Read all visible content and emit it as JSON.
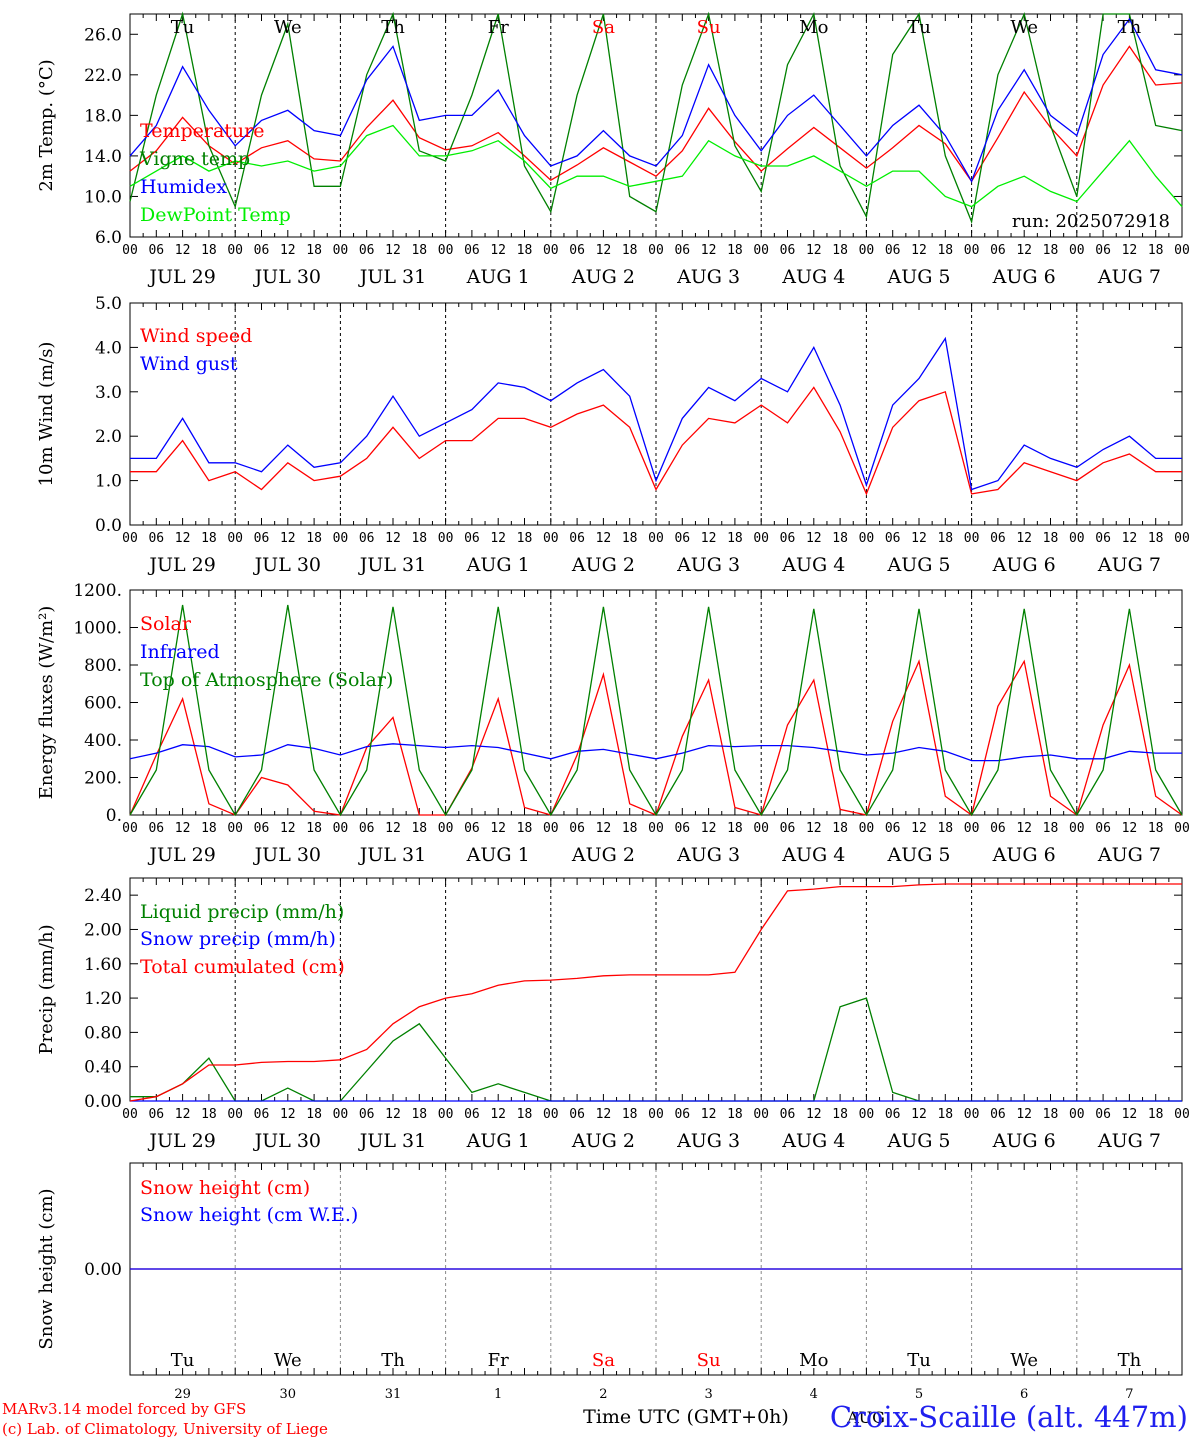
{
  "run_label": "run: 2025072918",
  "xaxis": {
    "hour_labels": [
      "00",
      "06",
      "12",
      "18"
    ],
    "end_hour_label": "00",
    "dates": [
      "JUL 29",
      "JUL 30",
      "JUL 31",
      "AUG  1",
      "AUG  2",
      "AUG  3",
      "AUG  4",
      "AUG  5",
      "AUG  6",
      "AUG  7"
    ],
    "weekdays": [
      "Tu",
      "We",
      "Th",
      "Fr",
      "Sa",
      "Su",
      "Mo",
      "Tu",
      "We",
      "Th"
    ],
    "weekend_color": "#ff0000",
    "weekend_index": [
      4,
      5
    ],
    "day_numbers": [
      "29",
      "30",
      "31",
      "1",
      "2",
      "3",
      "4",
      "5",
      "6",
      "7"
    ],
    "bottom_month": "AUG",
    "bottom_title": "Time UTC (GMT+0h)"
  },
  "footer": {
    "credit_line1": "MARv3.14 model forced by GFS",
    "credit_line2": "(c) Lab. of Climatology, University of Liege",
    "location": "Croix-Scaille (alt. 447m)"
  },
  "chart_data": [
    {
      "id": "temp",
      "type": "line",
      "ylabel": "2m Temp. (°C)",
      "ylim": [
        6.0,
        28.0
      ],
      "yticks": [
        6.0,
        10.0,
        14.0,
        18.0,
        22.0,
        26.0
      ],
      "tick_decimals": 1,
      "x_hours_start": 0,
      "step_hours": 6,
      "series": [
        {
          "name": "Temperature",
          "color": "#ff0000",
          "values": [
            12.5,
            14.5,
            17.8,
            15.0,
            13.2,
            14.8,
            15.5,
            13.7,
            13.5,
            16.8,
            19.5,
            15.8,
            14.6,
            15.0,
            16.3,
            14.0,
            11.6,
            13.1,
            14.8,
            13.4,
            12.0,
            14.5,
            18.7,
            15.4,
            12.5,
            14.7,
            16.8,
            14.8,
            12.8,
            14.8,
            17.0,
            15.2,
            11.5,
            15.8,
            20.3,
            16.8,
            14.0,
            21.0,
            24.8,
            21.0,
            21.2
          ]
        },
        {
          "name": "Vigne temp",
          "color": "#008000",
          "values": [
            9.5,
            20.0,
            28.0,
            15.0,
            9.0,
            20.0,
            27.0,
            11.0,
            11.0,
            22.0,
            28.0,
            14.5,
            13.5,
            20.0,
            28.0,
            13.0,
            8.5,
            20.0,
            28.0,
            10.0,
            8.5,
            21.0,
            28.0,
            15.0,
            10.5,
            23.0,
            28.0,
            13.0,
            8.0,
            24.0,
            28.0,
            14.0,
            7.5,
            22.0,
            28.0,
            17.0,
            10.0,
            28.0,
            28.0,
            17.0,
            16.5
          ]
        },
        {
          "name": "Humidex",
          "color": "#0000ff",
          "values": [
            14.0,
            17.0,
            22.8,
            18.5,
            15.0,
            17.5,
            18.5,
            16.5,
            16.0,
            21.5,
            24.8,
            17.5,
            18.0,
            18.0,
            20.5,
            16.0,
            13.0,
            14.0,
            16.5,
            14.0,
            13.0,
            16.0,
            23.0,
            18.0,
            14.5,
            18.0,
            20.0,
            17.0,
            14.0,
            17.0,
            19.0,
            16.0,
            11.5,
            18.5,
            22.5,
            18.0,
            16.0,
            24.0,
            27.5,
            22.5,
            22.0
          ]
        },
        {
          "name": "DewPoint Temp",
          "color": "#00ee00",
          "values": [
            11.0,
            12.5,
            14.0,
            12.5,
            13.5,
            13.0,
            13.5,
            12.5,
            13.0,
            16.0,
            17.0,
            14.0,
            14.0,
            14.5,
            15.5,
            13.5,
            10.8,
            12.0,
            12.0,
            11.0,
            11.5,
            12.0,
            15.5,
            14.0,
            13.0,
            13.0,
            14.0,
            12.5,
            11.0,
            12.5,
            12.5,
            10.0,
            9.0,
            11.0,
            12.0,
            10.5,
            9.5,
            12.5,
            15.5,
            12.0,
            9.0
          ]
        }
      ]
    },
    {
      "id": "wind",
      "type": "line",
      "ylabel": "10m Wind (m/s)",
      "ylim": [
        0.0,
        5.0
      ],
      "yticks": [
        0.0,
        1.0,
        2.0,
        3.0,
        4.0,
        5.0
      ],
      "tick_decimals": 1,
      "x_hours_start": 0,
      "step_hours": 6,
      "series": [
        {
          "name": "Wind speed",
          "color": "#ff0000",
          "values": [
            1.2,
            1.2,
            1.9,
            1.0,
            1.2,
            0.8,
            1.4,
            1.0,
            1.1,
            1.5,
            2.2,
            1.5,
            1.9,
            1.9,
            2.4,
            2.4,
            2.2,
            2.5,
            2.7,
            2.2,
            0.8,
            1.8,
            2.4,
            2.3,
            2.7,
            2.3,
            3.1,
            2.1,
            0.7,
            2.2,
            2.8,
            3.0,
            0.7,
            0.8,
            1.4,
            1.2,
            1.0,
            1.4,
            1.6,
            1.2,
            1.2
          ]
        },
        {
          "name": "Wind gust",
          "color": "#0000ff",
          "values": [
            1.5,
            1.5,
            2.4,
            1.4,
            1.4,
            1.2,
            1.8,
            1.3,
            1.4,
            2.0,
            2.9,
            2.0,
            2.3,
            2.6,
            3.2,
            3.1,
            2.8,
            3.2,
            3.5,
            2.9,
            1.0,
            2.4,
            3.1,
            2.8,
            3.3,
            3.0,
            4.0,
            2.7,
            0.9,
            2.7,
            3.3,
            4.2,
            0.8,
            1.0,
            1.8,
            1.5,
            1.3,
            1.7,
            2.0,
            1.5,
            1.5
          ]
        }
      ]
    },
    {
      "id": "energy",
      "type": "line",
      "ylabel": "Energy fluxes (W/m²)",
      "ylim": [
        0,
        1200
      ],
      "yticks": [
        0,
        200,
        400,
        600,
        800,
        1000,
        1200
      ],
      "tick_format": "dot",
      "x_hours_start": 0,
      "step_hours": 6,
      "series": [
        {
          "name": "Solar",
          "color": "#ff0000",
          "values": [
            0,
            320,
            620,
            60,
            0,
            200,
            160,
            20,
            0,
            360,
            520,
            0,
            0,
            250,
            620,
            40,
            0,
            320,
            750,
            60,
            0,
            420,
            720,
            40,
            0,
            480,
            720,
            30,
            0,
            500,
            820,
            100,
            0,
            580,
            820,
            100,
            0,
            480,
            800,
            100,
            0
          ]
        },
        {
          "name": "Infrared",
          "color": "#0000ff",
          "values": [
            300,
            330,
            375,
            365,
            310,
            320,
            375,
            355,
            320,
            365,
            380,
            370,
            360,
            370,
            360,
            330,
            300,
            340,
            350,
            325,
            300,
            330,
            370,
            365,
            370,
            370,
            360,
            340,
            320,
            330,
            360,
            340,
            290,
            290,
            310,
            320,
            300,
            300,
            340,
            330,
            330
          ]
        },
        {
          "name": "Top of Atmosphere (Solar)",
          "color": "#008000",
          "values": [
            0,
            240,
            1120,
            240,
            0,
            240,
            1120,
            240,
            0,
            240,
            1110,
            240,
            0,
            240,
            1110,
            240,
            0,
            240,
            1110,
            240,
            0,
            240,
            1110,
            240,
            0,
            240,
            1100,
            240,
            0,
            240,
            1100,
            240,
            0,
            240,
            1100,
            240,
            0,
            240,
            1100,
            240,
            0
          ]
        }
      ]
    },
    {
      "id": "precip",
      "type": "line",
      "ylabel": "Precip (mm/h)",
      "ylim": [
        0.0,
        2.6
      ],
      "yticks": [
        0.0,
        0.4,
        0.8,
        1.2,
        1.6,
        2.0,
        2.4
      ],
      "tick_decimals": 2,
      "x_hours_start": 0,
      "step_hours": 6,
      "series": [
        {
          "name": "Liquid precip (mm/h)",
          "color": "#008000",
          "values": [
            0.05,
            0.05,
            0.2,
            0.5,
            0.0,
            0.0,
            0.15,
            0.0,
            0.0,
            0.35,
            0.7,
            0.9,
            0.5,
            0.1,
            0.2,
            0.1,
            0.0,
            0.0,
            0.0,
            0.0,
            0.0,
            0.0,
            0.0,
            0.0,
            0.0,
            0.0,
            0.0,
            1.1,
            1.2,
            0.1,
            0.0,
            0.0,
            0.0,
            0.0,
            0.0,
            0.0,
            0.0,
            0.0,
            0.0,
            0.0,
            0.0
          ]
        },
        {
          "name": "Snow precip (mm/h)",
          "color": "#0000ff",
          "values": [
            0,
            0,
            0,
            0,
            0,
            0,
            0,
            0,
            0,
            0,
            0,
            0,
            0,
            0,
            0,
            0,
            0,
            0,
            0,
            0,
            0,
            0,
            0,
            0,
            0,
            0,
            0,
            0,
            0,
            0,
            0,
            0,
            0,
            0,
            0,
            0,
            0,
            0,
            0,
            0,
            0
          ]
        },
        {
          "name": "Total cumulated (cm)",
          "color": "#ff0000",
          "values": [
            0.0,
            0.05,
            0.2,
            0.42,
            0.42,
            0.45,
            0.46,
            0.46,
            0.48,
            0.6,
            0.9,
            1.1,
            1.2,
            1.25,
            1.35,
            1.4,
            1.41,
            1.43,
            1.46,
            1.47,
            1.47,
            1.47,
            1.47,
            1.5,
            2.0,
            2.45,
            2.47,
            2.5,
            2.5,
            2.5,
            2.52,
            2.53,
            2.53,
            2.53,
            2.53,
            2.53,
            2.53,
            2.53,
            2.53,
            2.53,
            2.53
          ]
        }
      ]
    },
    {
      "id": "snow",
      "type": "line",
      "ylabel": "Snow height (cm)",
      "ylim": [
        -1.0,
        1.0
      ],
      "yticks": [
        0.0
      ],
      "tick_decimals": 2,
      "x_hours_start": 0,
      "step_hours": 6,
      "series": [
        {
          "name": "Snow height (cm)",
          "color": "#ff0000",
          "values": [
            0,
            0,
            0,
            0,
            0,
            0,
            0,
            0,
            0,
            0,
            0,
            0,
            0,
            0,
            0,
            0,
            0,
            0,
            0,
            0,
            0,
            0,
            0,
            0,
            0,
            0,
            0,
            0,
            0,
            0,
            0,
            0,
            0,
            0,
            0,
            0,
            0,
            0,
            0,
            0,
            0
          ]
        },
        {
          "name": "Snow height (cm W.E.)",
          "color": "#0000ff",
          "values": [
            0,
            0,
            0,
            0,
            0,
            0,
            0,
            0,
            0,
            0,
            0,
            0,
            0,
            0,
            0,
            0,
            0,
            0,
            0,
            0,
            0,
            0,
            0,
            0,
            0,
            0,
            0,
            0,
            0,
            0,
            0,
            0,
            0,
            0,
            0,
            0,
            0,
            0,
            0,
            0,
            0
          ]
        }
      ]
    }
  ]
}
